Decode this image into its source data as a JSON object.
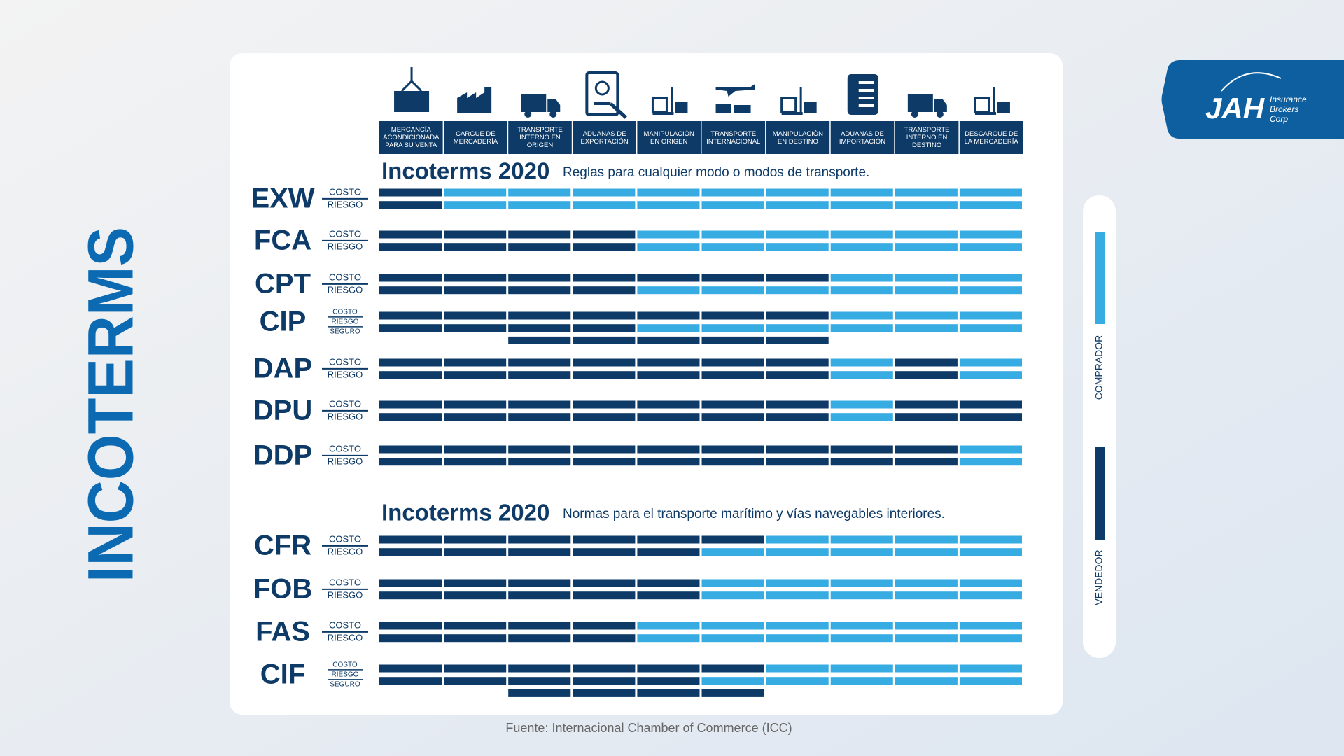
{
  "title": "INCOTERMS",
  "columns": [
    "MERCANCÍA ACONDICIONADA PARA SU VENTA",
    "CARGUE DE MERCADERÍA",
    "TRANSPORTE INTERNO EN ORIGEN",
    "ADUANAS DE EXPORTACIÓN",
    "MANIPULACIÓN EN ORIGEN",
    "TRANSPORTE INTERNACIONAL",
    "MANIPULACIÓN EN DESTINO",
    "ADUANAS DE IMPORTACIÓN",
    "TRANSPORTE INTERNO EN DESTINO",
    "DESCARGUE DE LA MERCADERÍA"
  ],
  "legend": [
    {
      "label": "COMPRADOR",
      "color": "#36ace2"
    },
    {
      "label": "VENDEDOR",
      "color": "#0d3a66"
    }
  ],
  "sections": [
    {
      "heading": "Incoterms 2020",
      "subtitle": "Reglas para cualquier modo o modos de transporte.",
      "rows": [
        {
          "code": "EXW",
          "lines": [
            "COSTO",
            "RIESGO"
          ],
          "cells": [
            [
              1,
              0,
              0,
              0,
              0,
              0,
              0,
              0,
              0,
              0
            ],
            [
              1,
              0,
              0,
              0,
              0,
              0,
              0,
              0,
              0,
              0
            ]
          ]
        },
        {
          "code": "FCA",
          "lines": [
            "COSTO",
            "RIESGO"
          ],
          "cells": [
            [
              1,
              1,
              1,
              1,
              0,
              0,
              0,
              0,
              0,
              0
            ],
            [
              1,
              1,
              1,
              1,
              0,
              0,
              0,
              0,
              0,
              0
            ]
          ]
        },
        {
          "code": "CPT",
          "lines": [
            "COSTO",
            "RIESGO"
          ],
          "cells": [
            [
              1,
              1,
              1,
              1,
              1,
              1,
              1,
              0,
              0,
              0
            ],
            [
              1,
              1,
              1,
              1,
              0,
              0,
              0,
              0,
              0,
              0
            ]
          ]
        },
        {
          "code": "CIP",
          "lines": [
            "COSTO",
            "RIESGO",
            "SEGURO"
          ],
          "cells": [
            [
              1,
              1,
              1,
              1,
              1,
              1,
              1,
              0,
              0,
              0
            ],
            [
              1,
              1,
              1,
              1,
              0,
              0,
              0,
              0,
              0,
              0
            ],
            [
              null,
              null,
              1,
              1,
              1,
              1,
              1,
              null,
              null,
              null
            ]
          ]
        },
        {
          "code": "DAP",
          "lines": [
            "COSTO",
            "RIESGO"
          ],
          "cells": [
            [
              1,
              1,
              1,
              1,
              1,
              1,
              1,
              0,
              1,
              0
            ],
            [
              1,
              1,
              1,
              1,
              1,
              1,
              1,
              0,
              1,
              0
            ]
          ]
        },
        {
          "code": "DPU",
          "lines": [
            "COSTO",
            "RIESGO"
          ],
          "cells": [
            [
              1,
              1,
              1,
              1,
              1,
              1,
              1,
              0,
              1,
              1
            ],
            [
              1,
              1,
              1,
              1,
              1,
              1,
              1,
              0,
              1,
              1
            ]
          ]
        },
        {
          "code": "DDP",
          "lines": [
            "COSTO",
            "RIESGO"
          ],
          "cells": [
            [
              1,
              1,
              1,
              1,
              1,
              1,
              1,
              1,
              1,
              0
            ],
            [
              1,
              1,
              1,
              1,
              1,
              1,
              1,
              1,
              1,
              0
            ]
          ]
        }
      ]
    },
    {
      "heading": "Incoterms 2020",
      "subtitle": "Normas para el transporte marítimo y vías navegables interiores.",
      "rows": [
        {
          "code": "CFR",
          "lines": [
            "COSTO",
            "RIESGO"
          ],
          "cells": [
            [
              1,
              1,
              1,
              1,
              1,
              1,
              0,
              0,
              0,
              0
            ],
            [
              1,
              1,
              1,
              1,
              1,
              0,
              0,
              0,
              0,
              0
            ]
          ]
        },
        {
          "code": "FOB",
          "lines": [
            "COSTO",
            "RIESGO"
          ],
          "cells": [
            [
              1,
              1,
              1,
              1,
              1,
              0,
              0,
              0,
              0,
              0
            ],
            [
              1,
              1,
              1,
              1,
              1,
              0,
              0,
              0,
              0,
              0
            ]
          ]
        },
        {
          "code": "FAS",
          "lines": [
            "COSTO",
            "RIESGO"
          ],
          "cells": [
            [
              1,
              1,
              1,
              1,
              0,
              0,
              0,
              0,
              0,
              0
            ],
            [
              1,
              1,
              1,
              1,
              0,
              0,
              0,
              0,
              0,
              0
            ]
          ]
        },
        {
          "code": "CIF",
          "lines": [
            "COSTO",
            "RIESGO",
            "SEGURO"
          ],
          "cells": [
            [
              1,
              1,
              1,
              1,
              1,
              1,
              0,
              0,
              0,
              0
            ],
            [
              1,
              1,
              1,
              1,
              1,
              0,
              0,
              0,
              0,
              0
            ],
            [
              null,
              null,
              1,
              1,
              1,
              1,
              null,
              null,
              null,
              null
            ]
          ]
        }
      ]
    }
  ],
  "source": "Fuente: Internacional Chamber of Commerce (ICC)",
  "logo": {
    "name": "JAH",
    "tagline": [
      "Insurance",
      "Brokers",
      "Corp"
    ]
  }
}
